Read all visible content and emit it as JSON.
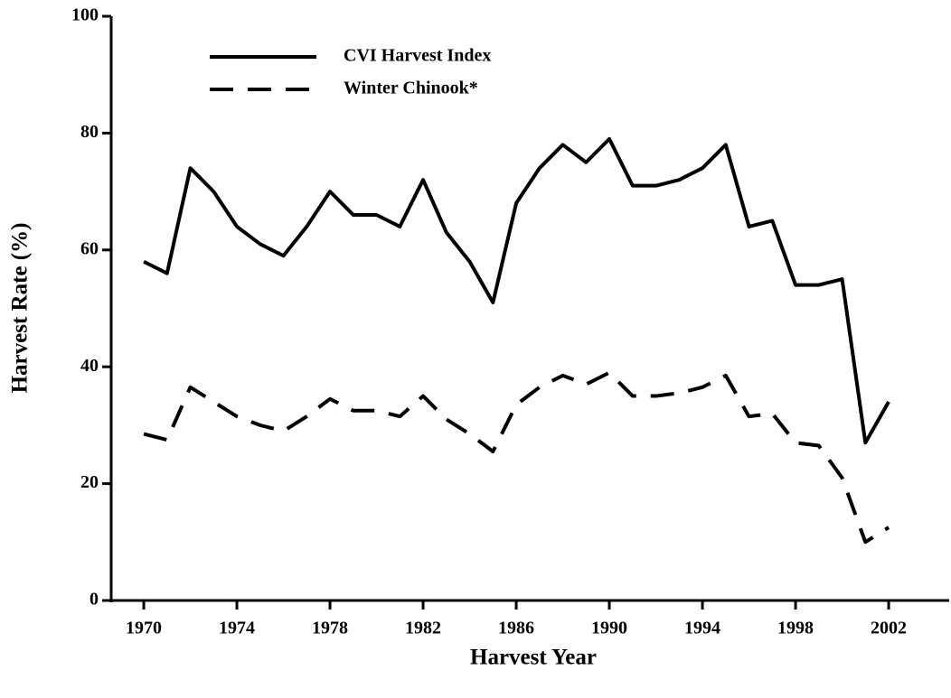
{
  "chart_data": {
    "type": "line",
    "xlabel": "Harvest Year",
    "ylabel": "Harvest Rate (%)",
    "x": [
      1970,
      1971,
      1972,
      1973,
      1974,
      1975,
      1976,
      1977,
      1978,
      1979,
      1980,
      1981,
      1982,
      1983,
      1984,
      1985,
      1986,
      1987,
      1988,
      1989,
      1990,
      1991,
      1992,
      1993,
      1994,
      1995,
      1996,
      1997,
      1998,
      1999,
      2000,
      2001,
      2002
    ],
    "series": [
      {
        "name": "CVI Harvest Index",
        "color": "#000000",
        "style": "solid",
        "values": [
          58,
          56,
          74,
          70,
          64,
          61,
          59,
          64,
          70,
          66,
          66,
          64,
          72,
          63,
          58,
          51,
          68,
          74,
          78,
          75,
          79,
          71,
          71,
          72,
          74,
          78,
          64,
          65,
          54,
          54,
          55,
          27,
          34
        ]
      },
      {
        "name": "Winter Chinook*",
        "color": "#000000",
        "style": "dashed",
        "values": [
          28.5,
          27.5,
          36.5,
          34,
          31.5,
          30,
          29,
          31.5,
          34.5,
          32.5,
          32.5,
          31.5,
          35,
          31,
          28.5,
          25.5,
          33.5,
          36.5,
          38.5,
          37,
          39,
          35,
          35,
          35.5,
          36.5,
          38.5,
          31.5,
          32,
          27,
          26.5,
          21,
          10,
          12.5
        ]
      }
    ],
    "xlim": [
      1968.6,
      2004.6
    ],
    "xticks": [
      1970,
      1974,
      1978,
      1982,
      1986,
      1990,
      1994,
      1998,
      2002
    ],
    "ylim": [
      0,
      100
    ],
    "yticks": [
      0,
      20,
      40,
      60,
      80,
      100
    ],
    "legend": "upper left",
    "grid": false
  }
}
